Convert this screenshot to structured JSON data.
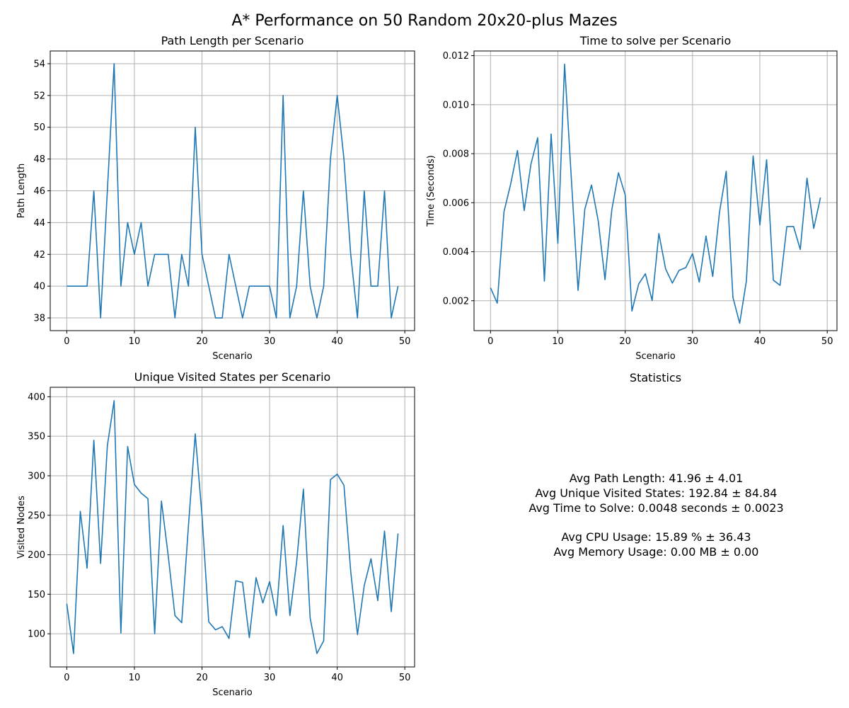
{
  "figure_title": "A* Performance on 50 Random 20x20-plus Mazes",
  "chart_data": [
    {
      "type": "line",
      "title": "Path Length per Scenario",
      "xlabel": "Scenario",
      "ylabel": "Path Length",
      "grid": true,
      "xlim": [
        -2.45,
        51.45
      ],
      "ylim": [
        37.2,
        54.8
      ],
      "xticks": [
        0,
        10,
        20,
        30,
        40,
        50
      ],
      "yticks": [
        38,
        40,
        42,
        44,
        46,
        48,
        50,
        52,
        54
      ],
      "tick_labels_x": [
        "0",
        "10",
        "20",
        "30",
        "40",
        "50"
      ],
      "tick_labels_y": [
        "38",
        "40",
        "42",
        "44",
        "46",
        "48",
        "50",
        "52",
        "54"
      ],
      "color": "#1f77b4",
      "x": [
        0,
        1,
        2,
        3,
        4,
        5,
        6,
        7,
        8,
        9,
        10,
        11,
        12,
        13,
        14,
        15,
        16,
        17,
        18,
        19,
        20,
        21,
        22,
        23,
        24,
        25,
        26,
        27,
        28,
        29,
        30,
        31,
        32,
        33,
        34,
        35,
        36,
        37,
        38,
        39,
        40,
        41,
        42,
        43,
        44,
        45,
        46,
        47,
        48,
        49
      ],
      "values": [
        40,
        40,
        40,
        40,
        46,
        38,
        46,
        54,
        40,
        44,
        42,
        44,
        40,
        42,
        42,
        42,
        38,
        42,
        40,
        50,
        42,
        40,
        38,
        38,
        42,
        40,
        38,
        40,
        40,
        40,
        40,
        38,
        52,
        38,
        40,
        46,
        40,
        38,
        40,
        48,
        52,
        48,
        42,
        38,
        46,
        40,
        40,
        46,
        38,
        40
      ]
    },
    {
      "type": "line",
      "title": "Time to solve per Scenario",
      "xlabel": "Scenario",
      "ylabel": "Time (Seconds)",
      "grid": true,
      "xlim": [
        -2.45,
        51.45
      ],
      "ylim": [
        0.00078,
        0.01219
      ],
      "xticks": [
        0,
        10,
        20,
        30,
        40,
        50
      ],
      "yticks": [
        0.002,
        0.004,
        0.006,
        0.008,
        0.01,
        0.012
      ],
      "tick_labels_x": [
        "0",
        "10",
        "20",
        "30",
        "40",
        "50"
      ],
      "tick_labels_y": [
        "0.002",
        "0.004",
        "0.006",
        "0.008",
        "0.010",
        "0.012"
      ],
      "color": "#1f77b4",
      "x": [
        0,
        1,
        2,
        3,
        4,
        5,
        6,
        7,
        8,
        9,
        10,
        11,
        12,
        13,
        14,
        15,
        16,
        17,
        18,
        19,
        20,
        21,
        22,
        23,
        24,
        25,
        26,
        27,
        28,
        29,
        30,
        31,
        32,
        33,
        34,
        35,
        36,
        37,
        38,
        39,
        40,
        41,
        42,
        43,
        44,
        45,
        46,
        47,
        48,
        49
      ],
      "values": [
        0.00253,
        0.0019,
        0.00563,
        0.00677,
        0.00813,
        0.00568,
        0.00757,
        0.00865,
        0.0028,
        0.0088,
        0.00434,
        0.01165,
        0.00699,
        0.00242,
        0.00573,
        0.00672,
        0.00525,
        0.00286,
        0.00569,
        0.00722,
        0.00632,
        0.00158,
        0.00268,
        0.0031,
        0.00201,
        0.00474,
        0.0033,
        0.00272,
        0.00324,
        0.00335,
        0.00392,
        0.00276,
        0.00464,
        0.00299,
        0.0056,
        0.00728,
        0.00214,
        0.00108,
        0.00281,
        0.00791,
        0.00509,
        0.00775,
        0.00284,
        0.00263,
        0.00502,
        0.00503,
        0.00409,
        0.007,
        0.00495,
        0.00621
      ]
    },
    {
      "type": "line",
      "title": "Unique Visited States per Scenario",
      "xlabel": "Scenario",
      "ylabel": "Visited Nodes",
      "grid": true,
      "xlim": [
        -2.45,
        51.45
      ],
      "ylim": [
        58,
        412
      ],
      "xticks": [
        0,
        10,
        20,
        30,
        40,
        50
      ],
      "yticks": [
        100,
        150,
        200,
        250,
        300,
        350,
        400
      ],
      "tick_labels_x": [
        "0",
        "10",
        "20",
        "30",
        "40",
        "50"
      ],
      "tick_labels_y": [
        "100",
        "150",
        "200",
        "250",
        "300",
        "350",
        "400"
      ],
      "color": "#1f77b4",
      "x": [
        0,
        1,
        2,
        3,
        4,
        5,
        6,
        7,
        8,
        9,
        10,
        11,
        12,
        13,
        14,
        15,
        16,
        17,
        18,
        19,
        20,
        21,
        22,
        23,
        24,
        25,
        26,
        27,
        28,
        29,
        30,
        31,
        32,
        33,
        34,
        35,
        36,
        37,
        38,
        39,
        40,
        41,
        42,
        43,
        44,
        45,
        46,
        47,
        48,
        49
      ],
      "values": [
        138,
        75,
        255,
        183,
        345,
        189,
        338,
        395,
        101,
        337,
        289,
        278,
        271,
        100,
        268,
        199,
        123,
        114,
        237,
        353,
        250,
        115,
        105,
        109,
        94,
        167,
        165,
        95,
        171,
        139,
        166,
        123,
        237,
        123,
        191,
        283,
        120,
        75,
        91,
        295,
        302,
        288,
        179,
        99,
        161,
        195,
        142,
        230,
        128,
        227
      ]
    }
  ],
  "statistics": {
    "title": "Statistics",
    "avg_path_length": "Avg Path Length: 41.96 ± 4.01",
    "avg_unique_visited": "Avg Unique Visited States: 192.84 ± 84.84",
    "avg_time_to_solve": "Avg Time to Solve: 0.0048 seconds ± 0.0023",
    "avg_cpu_usage": "Avg CPU Usage: 15.89 % ± 36.43",
    "avg_memory_usage": "Avg Memory Usage: 0.00 MB ± 0.00"
  }
}
